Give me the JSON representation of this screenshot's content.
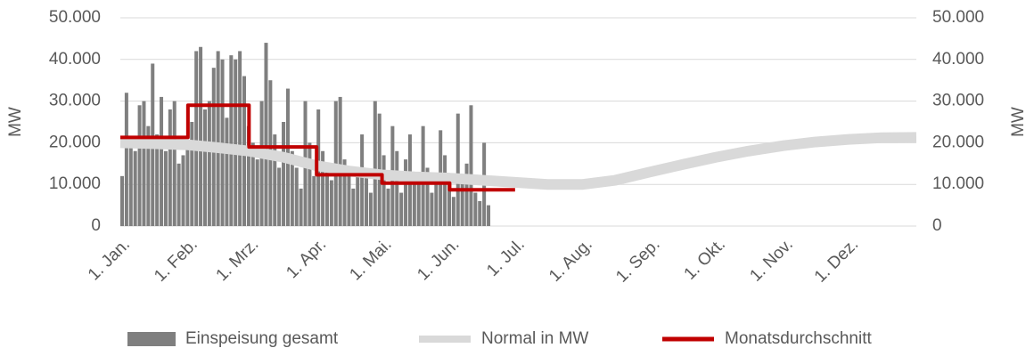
{
  "chart_data": {
    "type": "bar-line",
    "xlim": [
      0,
      365
    ],
    "xticks": [
      {
        "value": 0,
        "label": "1. Jan."
      },
      {
        "value": 31,
        "label": "1. Feb."
      },
      {
        "value": 59,
        "label": "1. Mrz."
      },
      {
        "value": 90,
        "label": "1. Apr."
      },
      {
        "value": 120,
        "label": "1. Mai."
      },
      {
        "value": 151,
        "label": "1. Jun."
      },
      {
        "value": 181,
        "label": "1. Jul."
      },
      {
        "value": 212,
        "label": "1. Aug."
      },
      {
        "value": 243,
        "label": "1. Sep."
      },
      {
        "value": 273,
        "label": "1. Okt."
      },
      {
        "value": 304,
        "label": "1. Nov."
      },
      {
        "value": 334,
        "label": "1. Dez."
      }
    ],
    "ylabel": "MW",
    "y2label": "MW",
    "ylim": [
      0,
      50000
    ],
    "yticks": [
      0,
      {
        "value": 10000,
        "label": "10.000"
      },
      {
        "value": 20000,
        "label": "20.000"
      },
      {
        "value": 30000,
        "label": "30.000"
      },
      {
        "value": 40000,
        "label": "40.000"
      },
      {
        "value": 50000,
        "label": "50.000"
      }
    ],
    "y2lim": [
      0,
      50000
    ],
    "y2ticks": [
      0,
      {
        "value": 10000,
        "label": "10.000"
      },
      {
        "value": 20000,
        "label": "20.000"
      },
      {
        "value": 30000,
        "label": "30.000"
      },
      {
        "value": 40000,
        "label": "40.000"
      },
      {
        "value": 50000,
        "label": "50.000"
      }
    ],
    "grid": true,
    "series": [
      {
        "name": "Einspeisung gesamt",
        "kind": "bar",
        "color": "#7f7f7f",
        "x": [
          0,
          2,
          4,
          6,
          8,
          10,
          12,
          14,
          16,
          18,
          20,
          22,
          24,
          26,
          28,
          30,
          32,
          34,
          36,
          38,
          40,
          42,
          44,
          46,
          48,
          50,
          52,
          54,
          56,
          58,
          60,
          62,
          64,
          66,
          68,
          70,
          72,
          74,
          76,
          78,
          80,
          82,
          84,
          86,
          88,
          90,
          92,
          94,
          96,
          98,
          100,
          102,
          104,
          106,
          108,
          110,
          112,
          114,
          116,
          118,
          120,
          122,
          124,
          126,
          128,
          130,
          132,
          134,
          136,
          138,
          140,
          142,
          144,
          146,
          148,
          150,
          152,
          154,
          156,
          158,
          160,
          162,
          164,
          166,
          168
        ],
        "values": [
          12000,
          32000,
          20000,
          18000,
          29000,
          30000,
          24000,
          39000,
          22000,
          31000,
          18000,
          28000,
          30000,
          15000,
          17000,
          20000,
          25000,
          42000,
          43000,
          28000,
          30000,
          38000,
          42000,
          40000,
          26000,
          41000,
          40000,
          42000,
          36000,
          24000,
          20000,
          16000,
          30000,
          44000,
          35000,
          22000,
          14000,
          25000,
          33000,
          18000,
          14000,
          9000,
          30000,
          20000,
          12000,
          28000,
          18000,
          13000,
          11000,
          30000,
          31000,
          16000,
          12000,
          9000,
          14000,
          22000,
          12000,
          8000,
          30000,
          27000,
          17000,
          9000,
          24000,
          18000,
          8000,
          16000,
          22000,
          10000,
          13000,
          24000,
          14000,
          8000,
          11000,
          23000,
          17000,
          10000,
          7000,
          27000,
          12000,
          15000,
          29000,
          8000,
          6000,
          20000,
          5000
        ]
      },
      {
        "name": "Normal in MW",
        "kind": "line",
        "color": "#d9d9d9",
        "axis": "y2",
        "x": [
          0,
          15,
          31,
          45,
          59,
          75,
          90,
          105,
          120,
          135,
          151,
          166,
          181,
          196,
          212,
          227,
          243,
          258,
          273,
          288,
          304,
          319,
          334,
          349,
          365
        ],
        "values": [
          20000,
          19800,
          19500,
          18800,
          18000,
          16500,
          14500,
          13200,
          12300,
          11800,
          11500,
          11000,
          10500,
          10000,
          10000,
          11000,
          13000,
          14800,
          16500,
          18000,
          19300,
          20200,
          20800,
          21200,
          21300
        ]
      },
      {
        "name": "Monatsdurchschnitt",
        "kind": "line",
        "color": "#c00000",
        "x": [
          0,
          31,
          31,
          59,
          59,
          90,
          90,
          120,
          120,
          151,
          151,
          181
        ],
        "values": [
          21300,
          21300,
          29000,
          29000,
          19000,
          19000,
          12300,
          12300,
          10300,
          10300,
          8700,
          8700
        ]
      }
    ]
  }
}
